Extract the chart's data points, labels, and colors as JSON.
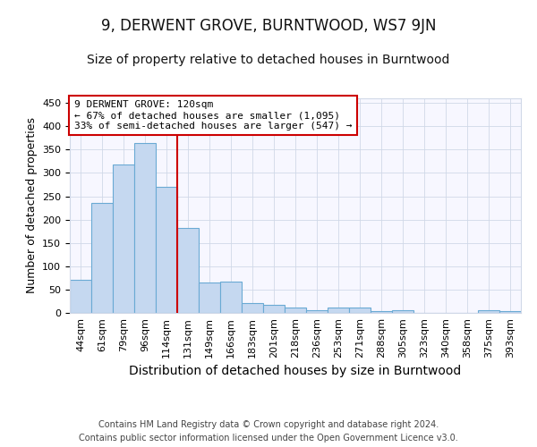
{
  "title": "9, DERWENT GROVE, BURNTWOOD, WS7 9JN",
  "subtitle": "Size of property relative to detached houses in Burntwood",
  "xlabel": "Distribution of detached houses by size in Burntwood",
  "ylabel": "Number of detached properties",
  "bin_labels": [
    "44sqm",
    "61sqm",
    "79sqm",
    "96sqm",
    "114sqm",
    "131sqm",
    "149sqm",
    "166sqm",
    "183sqm",
    "201sqm",
    "218sqm",
    "236sqm",
    "253sqm",
    "271sqm",
    "288sqm",
    "305sqm",
    "323sqm",
    "340sqm",
    "358sqm",
    "375sqm",
    "393sqm"
  ],
  "bar_heights": [
    70,
    235,
    318,
    365,
    270,
    183,
    66,
    68,
    22,
    18,
    11,
    5,
    11,
    11,
    3,
    5,
    0,
    0,
    0,
    5,
    3
  ],
  "bar_color": "#c5d8f0",
  "bar_edge_color": "#6aaad4",
  "vline_x": 4.5,
  "vline_color": "#cc0000",
  "annotation_text": "9 DERWENT GROVE: 120sqm\n← 67% of detached houses are smaller (1,095)\n33% of semi-detached houses are larger (547) →",
  "annotation_box_color": "#ffffff",
  "annotation_box_edge": "#cc0000",
  "ylim": [
    0,
    460
  ],
  "yticks": [
    0,
    50,
    100,
    150,
    200,
    250,
    300,
    350,
    400,
    450
  ],
  "footer_line1": "Contains HM Land Registry data © Crown copyright and database right 2024.",
  "footer_line2": "Contains public sector information licensed under the Open Government Licence v3.0.",
  "title_fontsize": 12,
  "subtitle_fontsize": 10,
  "tick_fontsize": 8,
  "ylabel_fontsize": 9,
  "xlabel_fontsize": 10,
  "background_color": "#ffffff",
  "plot_bg_color": "#f7f7ff",
  "grid_color": "#d0d8e8"
}
